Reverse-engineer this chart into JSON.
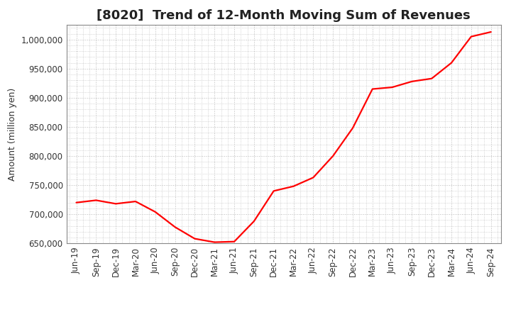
{
  "title": "[8020]  Trend of 12-Month Moving Sum of Revenues",
  "ylabel": "Amount (million yen)",
  "line_color": "#FF0000",
  "background_color": "#FFFFFF",
  "grid_color": "#BBBBBB",
  "ylim": [
    650000,
    1025000
  ],
  "yticks": [
    650000,
    700000,
    750000,
    800000,
    850000,
    900000,
    950000,
    1000000
  ],
  "x_labels": [
    "Jun-19",
    "Sep-19",
    "Dec-19",
    "Mar-20",
    "Jun-20",
    "Sep-20",
    "Dec-20",
    "Mar-21",
    "Jun-21",
    "Sep-21",
    "Dec-21",
    "Mar-22",
    "Jun-22",
    "Sep-22",
    "Dec-22",
    "Mar-23",
    "Jun-23",
    "Sep-23",
    "Dec-23",
    "Mar-24",
    "Jun-24",
    "Sep-24"
  ],
  "y_values": [
    720000,
    724000,
    718000,
    722000,
    704000,
    678000,
    658000,
    652000,
    653000,
    688000,
    740000,
    748000,
    763000,
    800000,
    848000,
    915000,
    918000,
    928000,
    933000,
    960000,
    1005000,
    1013000
  ],
  "title_fontsize": 13,
  "ylabel_fontsize": 9,
  "tick_fontsize": 8.5,
  "line_width": 1.6
}
